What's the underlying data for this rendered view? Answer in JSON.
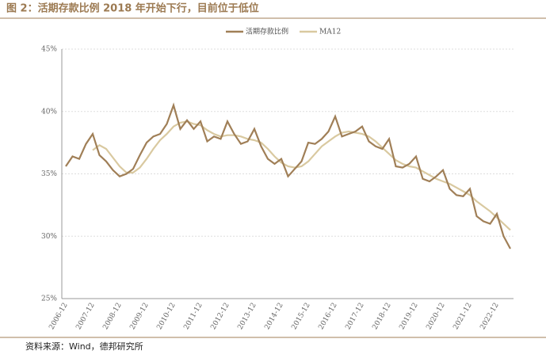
{
  "chart_data": {
    "type": "line",
    "title": "图 2：活期存款比例 2018 年开始下行，目前位于低位",
    "source": "资料来源：Wind，德邦研究所",
    "categories": [
      "2006-12",
      null,
      null,
      null,
      "2007-12",
      null,
      null,
      null,
      "2008-12",
      null,
      null,
      null,
      "2009-12",
      null,
      null,
      null,
      "2010-12",
      null,
      null,
      null,
      "2011-12",
      null,
      null,
      null,
      "2012-12",
      null,
      null,
      null,
      "2013-12",
      null,
      null,
      null,
      "2014-12",
      null,
      null,
      null,
      "2015-12",
      null,
      null,
      null,
      "2016-12",
      null,
      null,
      null,
      "2017-12",
      null,
      null,
      null,
      "2018-12",
      null,
      null,
      null,
      "2019-12",
      null,
      null,
      null,
      "2020-12",
      null,
      null,
      null,
      "2021-12",
      null,
      null,
      null,
      "2022-12",
      null,
      null
    ],
    "series": [
      {
        "name": "活期存款比例",
        "color": "#a07f57",
        "values": [
          35.6,
          36.4,
          36.2,
          37.4,
          38.2,
          36.5,
          36.0,
          35.3,
          34.8,
          35.0,
          35.4,
          36.5,
          37.5,
          38.0,
          38.2,
          39.0,
          40.5,
          38.6,
          39.3,
          38.6,
          39.2,
          37.6,
          38.0,
          37.8,
          39.2,
          38.2,
          37.4,
          37.6,
          38.6,
          37.2,
          36.2,
          35.8,
          36.2,
          34.8,
          35.4,
          36.0,
          37.5,
          37.4,
          37.8,
          38.4,
          39.6,
          38.0,
          38.2,
          38.4,
          38.8,
          37.6,
          37.2,
          37.0,
          37.8,
          35.6,
          35.5,
          35.8,
          36.4,
          34.6,
          34.4,
          34.8,
          35.3,
          33.8,
          33.3,
          33.2,
          33.8,
          31.6,
          31.2,
          31.0,
          31.8,
          30.0,
          29.0
        ]
      },
      {
        "name": "MA12",
        "color": "#d9c9a0",
        "values": [
          null,
          null,
          null,
          null,
          36.9,
          37.3,
          37.0,
          36.3,
          35.6,
          35.1,
          35.1,
          35.5,
          36.2,
          37.0,
          37.7,
          38.2,
          38.8,
          39.1,
          39.2,
          39.0,
          38.9,
          38.5,
          38.2,
          38.0,
          38.1,
          38.1,
          38.0,
          37.8,
          37.7,
          37.5,
          37.0,
          36.4,
          35.9,
          35.6,
          35.5,
          35.6,
          36.0,
          36.6,
          37.2,
          37.6,
          38.0,
          38.3,
          38.4,
          38.3,
          38.2,
          38.0,
          37.6,
          37.1,
          36.6,
          36.1,
          35.8,
          35.6,
          35.5,
          35.2,
          34.9,
          34.6,
          34.4,
          34.2,
          33.9,
          33.6,
          33.3,
          32.8,
          32.4,
          32.0,
          31.5,
          31.0,
          30.5
        ]
      }
    ],
    "ylim": [
      25,
      45
    ],
    "yticks": [
      {
        "value": 25,
        "label": "25%"
      },
      {
        "value": 30,
        "label": "30%"
      },
      {
        "value": 35,
        "label": "35%"
      },
      {
        "value": 40,
        "label": "40%"
      },
      {
        "value": 45,
        "label": "45%"
      }
    ],
    "grid": true
  }
}
